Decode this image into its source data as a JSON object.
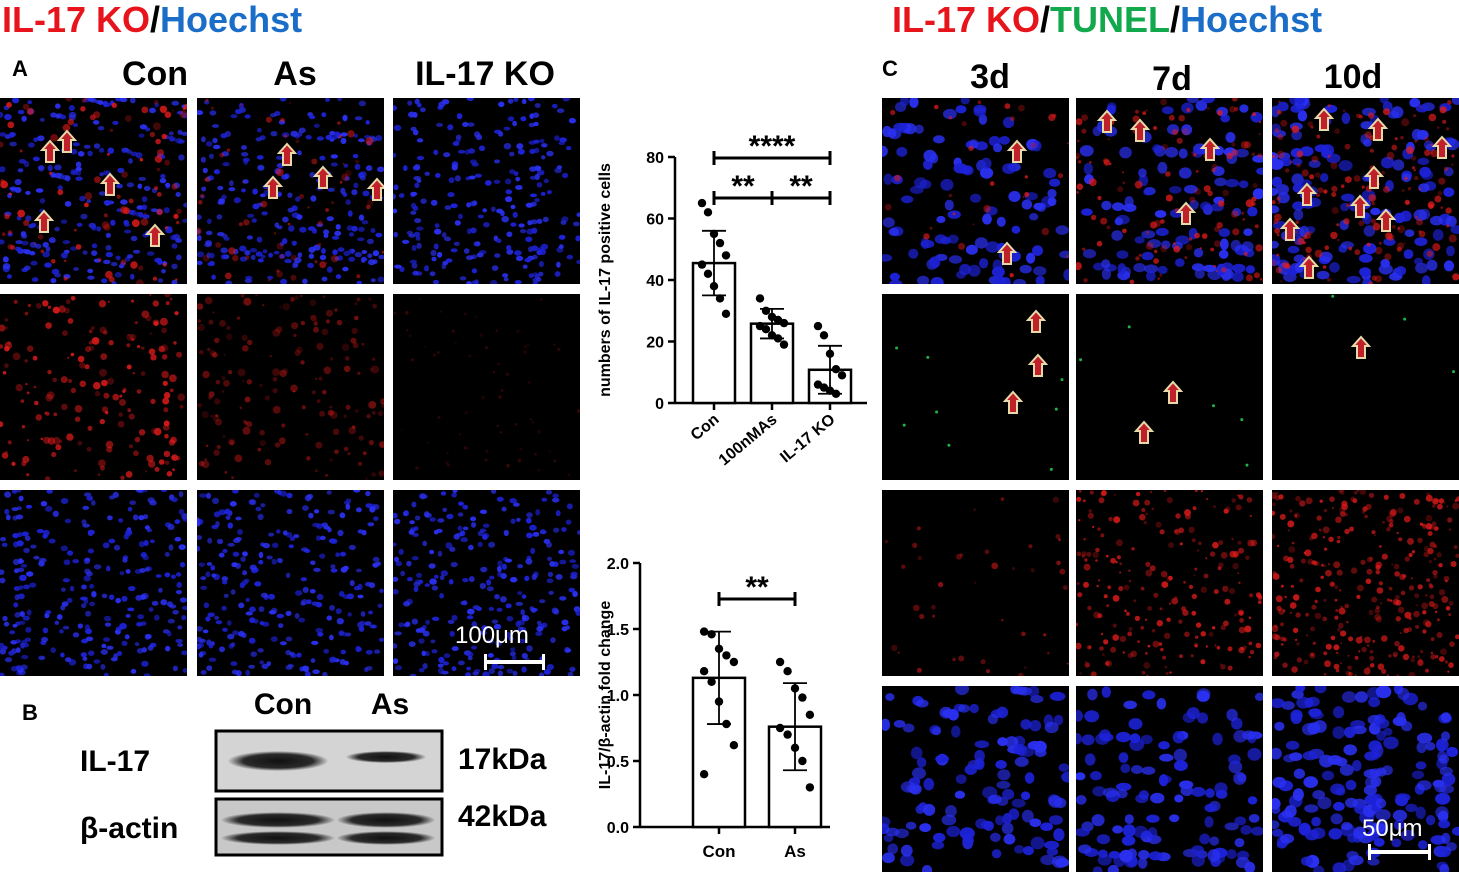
{
  "panelA": {
    "title_parts": [
      {
        "text": "IL-17 KO",
        "color": "#e8141b"
      },
      {
        "text": "/",
        "color": "#000000"
      },
      {
        "text": "Hoechst",
        "color": "#1a6ec8"
      }
    ],
    "letter": "A",
    "columns": [
      "Con",
      "As",
      "IL-17 KO"
    ],
    "scale_bar": "100μm"
  },
  "panelB": {
    "letter": "B",
    "columns": [
      "Con",
      "As"
    ],
    "rows": [
      {
        "label": "IL-17",
        "size": "17kDa"
      },
      {
        "label": "β-actin",
        "size": "42kDa"
      }
    ]
  },
  "panelC": {
    "title_parts": [
      {
        "text": "IL-17 KO",
        "color": "#e8141b"
      },
      {
        "text": "/",
        "color": "#000000"
      },
      {
        "text": "TUNEL",
        "color": "#12a84c"
      },
      {
        "text": "/",
        "color": "#000000"
      },
      {
        "text": "Hoechst",
        "color": "#1a6ec8"
      }
    ],
    "letter": "C",
    "columns": [
      "3d",
      "7d",
      "10d"
    ],
    "scale_bar": "50μm"
  },
  "chart_data": [
    {
      "type": "bar",
      "ylabel": "numbers of IL-17 positive cells",
      "categories": [
        "Con",
        "100nMAs",
        "IL-17 KO"
      ],
      "values": [
        45.5,
        25.8,
        10.8
      ],
      "error": [
        10.5,
        4.8,
        7.8
      ],
      "points": [
        [
          65,
          62,
          55,
          52,
          48,
          45,
          42,
          38,
          34,
          29
        ],
        [
          34,
          30,
          28,
          27,
          26,
          25,
          24,
          22,
          21,
          19
        ],
        [
          25,
          22,
          16,
          11,
          9,
          6,
          5,
          4,
          3
        ]
      ],
      "ylim": [
        0,
        80
      ],
      "yticks": [
        "0",
        "20",
        "40",
        "60",
        "80"
      ],
      "significance": [
        {
          "from": 0,
          "to": 2,
          "label": "****"
        },
        {
          "from": 0,
          "to": 1,
          "label": "**"
        },
        {
          "from": 1,
          "to": 2,
          "label": "**"
        }
      ]
    },
    {
      "type": "bar",
      "ylabel": "IL-17/β-actin fold change",
      "categories": [
        "Con",
        "As"
      ],
      "values": [
        1.13,
        0.76
      ],
      "error": [
        0.35,
        0.33
      ],
      "points": [
        [
          1.48,
          1.46,
          1.35,
          1.3,
          1.25,
          1.18,
          1.1,
          0.95,
          0.78,
          0.62,
          0.4
        ],
        [
          1.25,
          1.18,
          1.05,
          0.98,
          0.85,
          0.75,
          0.7,
          0.6,
          0.5,
          0.3
        ]
      ],
      "ylim": [
        0,
        2.0
      ],
      "yticks": [
        "0.0",
        "0.5",
        "1.0",
        "1.5",
        "2.0"
      ],
      "significance": [
        {
          "from": 0,
          "to": 1,
          "label": "**"
        }
      ]
    }
  ]
}
